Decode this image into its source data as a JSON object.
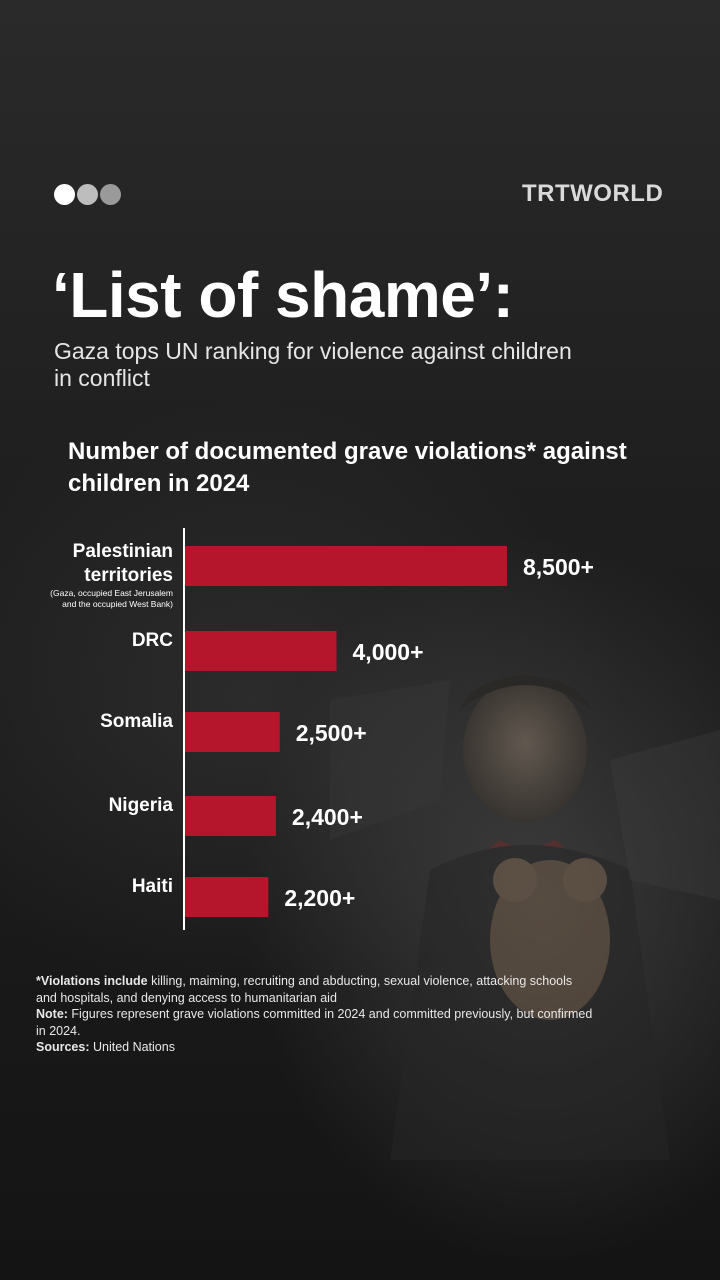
{
  "brand": {
    "logo": "TRTWORLD",
    "dots": [
      "#ffffff",
      "#bdbdbd",
      "#9a9a9a"
    ]
  },
  "header": {
    "title": "‘List of shame’:",
    "subtitle": "Gaza tops UN ranking for violence against children in conflict"
  },
  "chart_data": {
    "type": "bar",
    "orientation": "horizontal",
    "title": "Number of documented grave violations* against children in 2024",
    "categories": [
      "Palestinian territories",
      "DRC",
      "Somalia",
      "Nigeria",
      "Haiti"
    ],
    "category_notes": [
      "(Gaza, occupied East Jerusalem and the occupied West Bank)",
      "",
      "",
      "",
      ""
    ],
    "values": [
      8500,
      4000,
      2500,
      2400,
      2200
    ],
    "value_labels": [
      "8,500+",
      "4,000+",
      "2,500+",
      "2,400+",
      "2,200+"
    ],
    "xlim": [
      0,
      8500
    ],
    "bar_color": "#b5162b",
    "grid": false
  },
  "footnotes": {
    "violations_label": "*Violations include",
    "violations_text": " killing, maiming, recruiting and abducting, sexual violence, attacking schools and hospitals, and denying access to humanitarian aid",
    "note_label": "Note:",
    "note_text": " Figures represent grave violations committed in 2024 and committed previously, but confirmed in 2024.",
    "sources_label": "Sources:",
    "sources_text": " United Nations"
  }
}
